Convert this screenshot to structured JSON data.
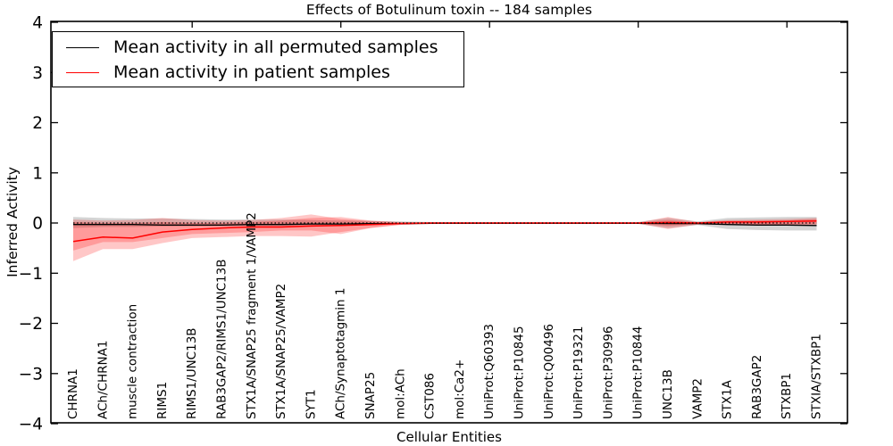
{
  "title": "Effects of Botulinum toxin -- 184 samples",
  "legend": {
    "items": [
      {
        "label": "Mean activity in all permuted samples",
        "color": "#000000"
      },
      {
        "label": "Mean activity in patient samples",
        "color": "#ff0000"
      }
    ],
    "position": "upper left"
  },
  "chart_data": {
    "type": "line",
    "title": "Effects of Botulinum toxin -- 184 samples",
    "xlabel": "Cellular Entities",
    "ylabel": "Inferred Activity",
    "ylim": [
      -4,
      4
    ],
    "yticks": [
      4,
      3,
      2,
      1,
      0,
      -1,
      -2,
      -3,
      -4
    ],
    "grid": false,
    "zero_line_style": "dotted",
    "categories": [
      "CHRNA1",
      "ACh/CHRNA1",
      "muscle contraction",
      "RIMS1",
      "RIMS1/UNC13B",
      "RAB3GAP2/RIMS1/UNC13B",
      "STX1A/SNAP25 fragment 1/VAMP2",
      "STX1A/SNAP25/VAMP2",
      "SYT1",
      "ACh/Synaptotagmin 1",
      "SNAP25",
      "mol:ACh",
      "CST086",
      "mol:Ca2+",
      "UniProt:Q60393",
      "UniProt:P10845",
      "UniProt:Q00496",
      "UniProt:P19321",
      "UniProt:P30996",
      "UniProt:P10844",
      "UNC13B",
      "VAMP2",
      "STX1A",
      "RAB3GAP2",
      "STXBP1",
      "STXIA/STXBP1"
    ],
    "series": [
      {
        "name": "Mean activity in all permuted samples",
        "color": "#000000",
        "width": 1.3,
        "values": [
          -0.03,
          -0.03,
          -0.03,
          -0.04,
          -0.04,
          -0.04,
          -0.03,
          -0.03,
          -0.02,
          -0.02,
          -0.01,
          -0.01,
          -0.005,
          -0.005,
          -0.005,
          -0.005,
          -0.005,
          -0.005,
          -0.005,
          -0.005,
          -0.01,
          -0.01,
          -0.03,
          -0.04,
          -0.04,
          -0.05
        ]
      },
      {
        "name": "Mean activity in patient samples",
        "color": "#ff0000",
        "width": 1.5,
        "values": [
          -0.37,
          -0.28,
          -0.3,
          -0.18,
          -0.13,
          -0.1,
          -0.08,
          -0.08,
          -0.06,
          -0.05,
          -0.03,
          -0.01,
          0,
          0,
          0,
          0,
          0,
          0,
          0,
          0,
          0.01,
          0,
          0.02,
          0.02,
          0.03,
          0.04
        ]
      }
    ],
    "bands": [
      {
        "name": "permuted-samples-spread",
        "color": "rgba(120,120,120,0.32)",
        "upper": [
          0.12,
          0.1,
          0.09,
          0.09,
          0.08,
          0.07,
          0.07,
          0.07,
          0.06,
          0.05,
          0.04,
          0.03,
          0.02,
          0.02,
          0.02,
          0.02,
          0.02,
          0.02,
          0.02,
          0.02,
          0.1,
          0.03,
          0.1,
          0.11,
          0.12,
          0.12
        ],
        "lower": [
          -0.1,
          -0.08,
          -0.08,
          -0.07,
          -0.07,
          -0.06,
          -0.06,
          -0.06,
          -0.06,
          -0.05,
          -0.04,
          -0.03,
          -0.02,
          -0.02,
          -0.02,
          -0.02,
          -0.02,
          -0.02,
          -0.02,
          -0.02,
          -0.1,
          -0.04,
          -0.12,
          -0.14,
          -0.15,
          -0.15
        ]
      },
      {
        "name": "patient-samples-spread-outer",
        "color": "rgba(255,0,0,0.22)",
        "upper": [
          0.07,
          0.05,
          0.06,
          0.1,
          0.06,
          0.05,
          0.06,
          0.1,
          0.17,
          0.08,
          0.04,
          0.02,
          0.01,
          0.01,
          0.01,
          0.01,
          0.01,
          0.01,
          0.01,
          0.01,
          0.12,
          0.02,
          0.06,
          0.07,
          0.08,
          0.1
        ],
        "lower": [
          -0.76,
          -0.52,
          -0.52,
          -0.4,
          -0.3,
          -0.28,
          -0.26,
          -0.26,
          -0.27,
          -0.18,
          -0.1,
          -0.04,
          -0.02,
          -0.01,
          -0.01,
          -0.01,
          -0.01,
          -0.01,
          -0.01,
          -0.01,
          -0.12,
          -0.03,
          -0.04,
          -0.04,
          -0.05,
          -0.05
        ]
      },
      {
        "name": "patient-samples-spread-inner",
        "color": "rgba(255,0,0,0.22)",
        "upper": [
          0.02,
          0.0,
          0.0,
          0.02,
          0.0,
          0.0,
          0.02,
          0.05,
          0.1,
          0.12,
          0.05,
          0.01,
          0.01,
          0.01,
          0.01,
          0.01,
          0.01,
          0.01,
          0.01,
          0.01,
          0.06,
          0.01,
          0.04,
          0.05,
          0.05,
          0.08
        ],
        "lower": [
          -0.55,
          -0.38,
          -0.38,
          -0.3,
          -0.22,
          -0.2,
          -0.18,
          -0.15,
          -0.15,
          -0.22,
          -0.1,
          -0.03,
          -0.01,
          -0.01,
          -0.01,
          -0.01,
          -0.01,
          -0.01,
          -0.01,
          -0.01,
          -0.06,
          -0.02,
          -0.02,
          -0.03,
          -0.03,
          -0.02
        ]
      }
    ],
    "top_axis_tick_indices": [
      4,
      9,
      14,
      19,
      24
    ],
    "legend_position": "upper left"
  }
}
